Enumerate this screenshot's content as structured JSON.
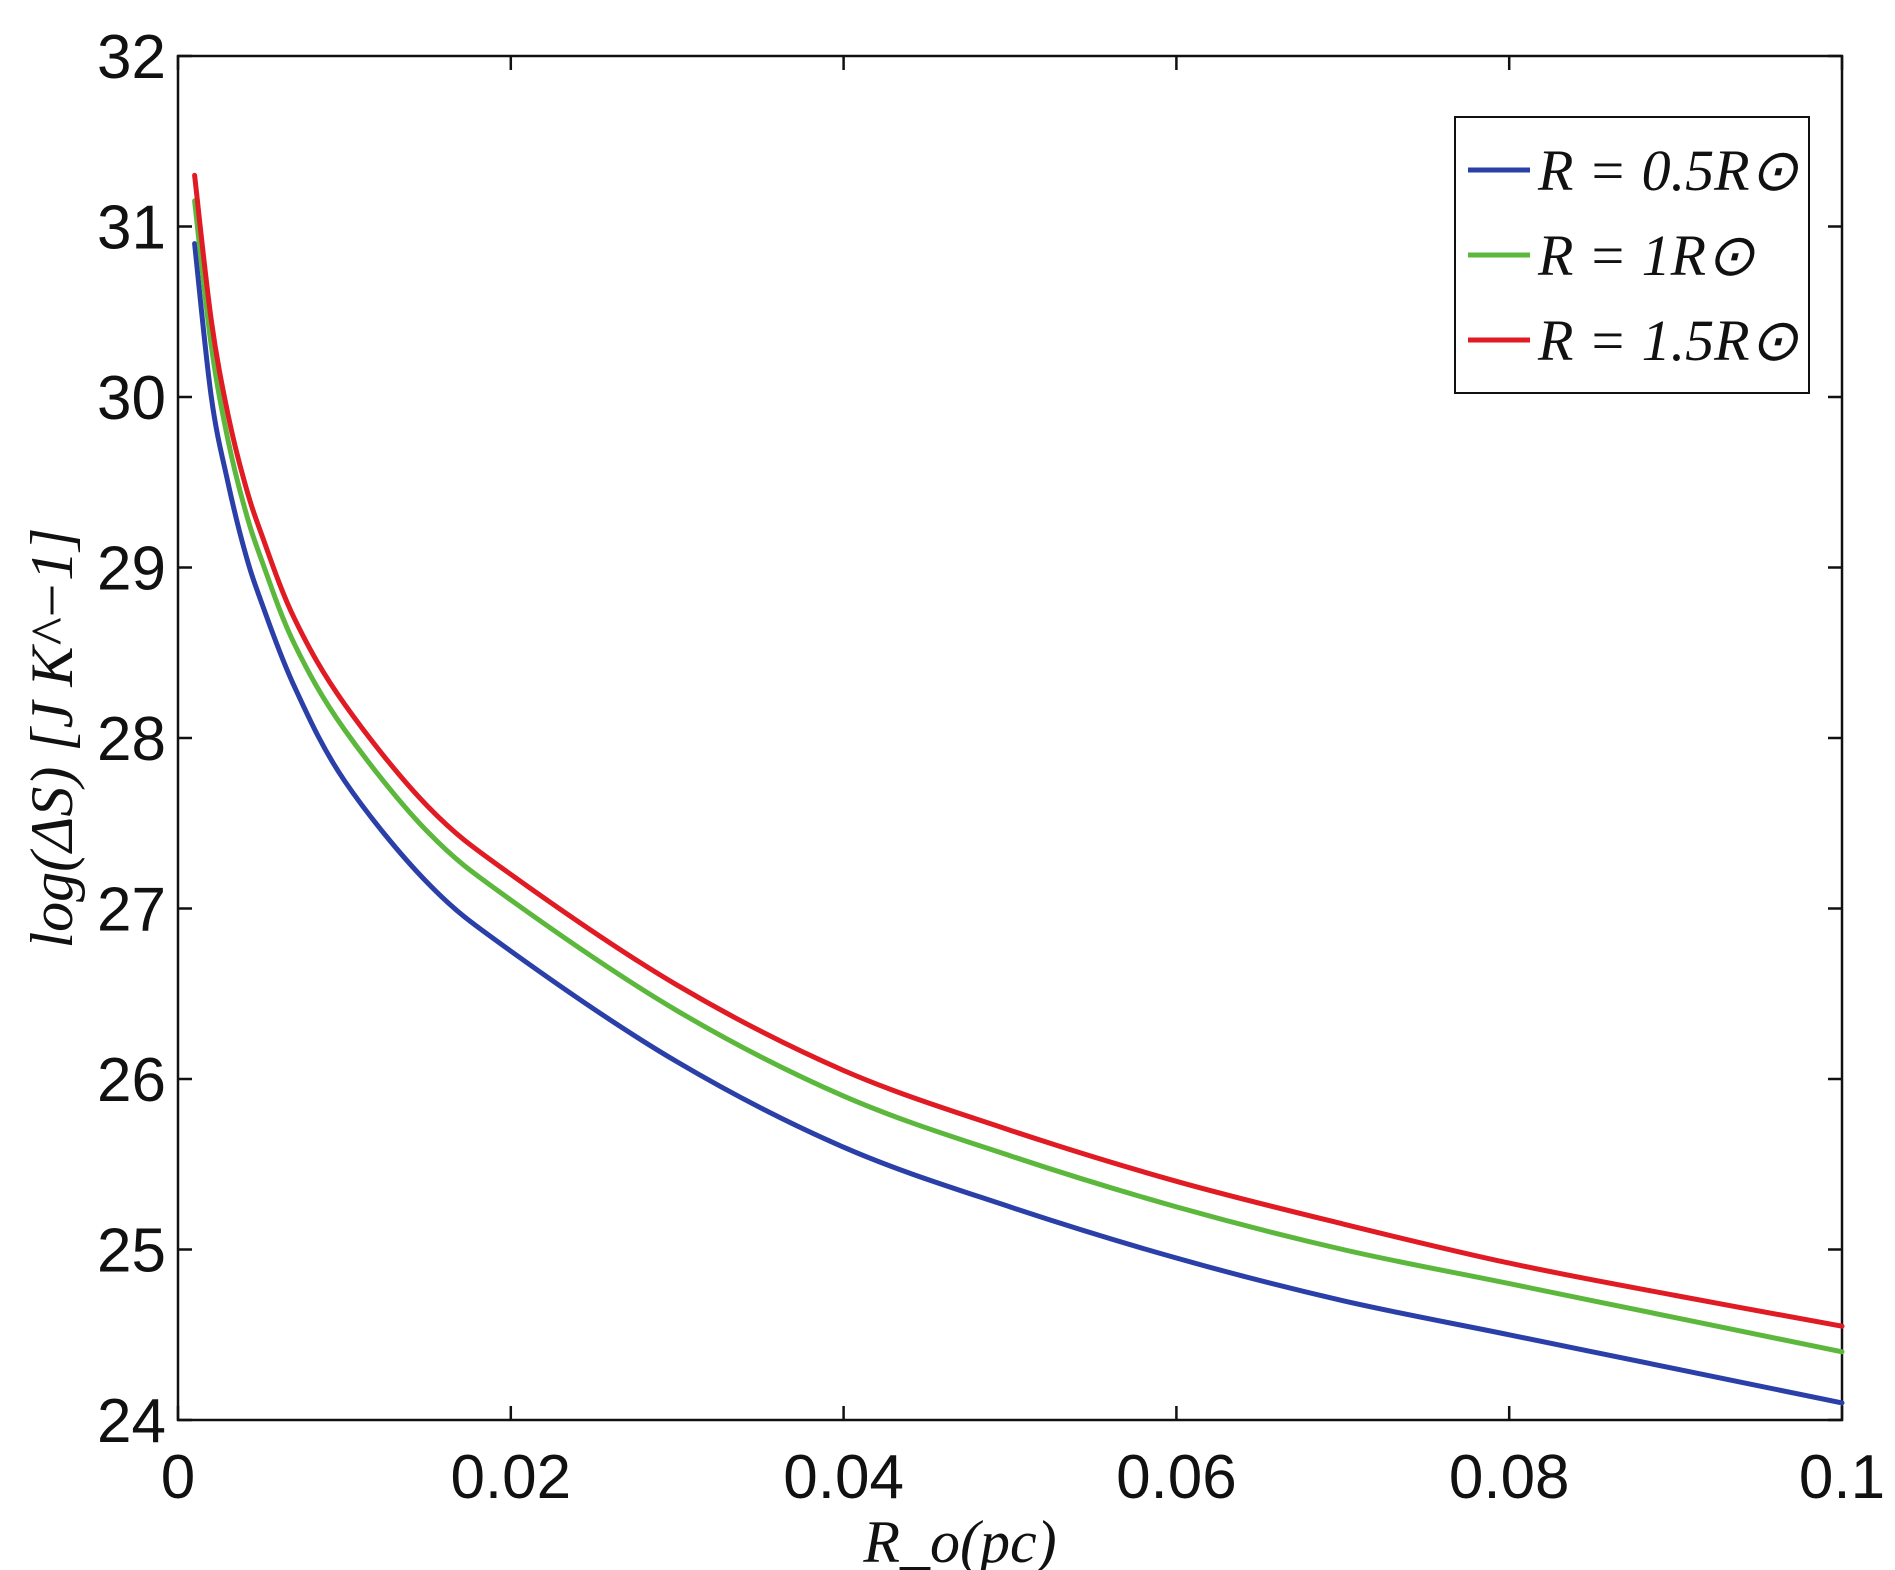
{
  "chart_data": {
    "type": "line",
    "xlabel": "R_o(pc)",
    "ylabel": "log(ΔS)  [J K^−1]",
    "xlim": [
      0,
      0.1
    ],
    "ylim": [
      24,
      32
    ],
    "xticks": [
      {
        "value": 0,
        "label": "0"
      },
      {
        "value": 0.02,
        "label": "0.02"
      },
      {
        "value": 0.04,
        "label": "0.04"
      },
      {
        "value": 0.06,
        "label": "0.06"
      },
      {
        "value": 0.08,
        "label": "0.08"
      },
      {
        "value": 0.1,
        "label": "0.1"
      }
    ],
    "yticks": [
      {
        "value": 24,
        "label": "24"
      },
      {
        "value": 25,
        "label": "25"
      },
      {
        "value": 26,
        "label": "26"
      },
      {
        "value": 27,
        "label": "27"
      },
      {
        "value": 28,
        "label": "28"
      },
      {
        "value": 29,
        "label": "29"
      },
      {
        "value": 30,
        "label": "30"
      },
      {
        "value": 31,
        "label": "31"
      },
      {
        "value": 32,
        "label": "32"
      }
    ],
    "grid": false,
    "legend_position": "top-right",
    "x": [
      0.001,
      0.002,
      0.003,
      0.004,
      0.005,
      0.007,
      0.01,
      0.015,
      0.02,
      0.03,
      0.04,
      0.05,
      0.06,
      0.07,
      0.08,
      0.09,
      0.1
    ],
    "series": [
      {
        "name": "R = 0.5R⊙",
        "color": "#2b3fa8",
        "values": [
          30.9,
          30.0,
          29.5,
          29.1,
          28.8,
          28.3,
          27.75,
          27.15,
          26.75,
          26.1,
          25.6,
          25.25,
          24.95,
          24.7,
          24.5,
          24.3,
          24.1
        ]
      },
      {
        "name": "R = 1R⊙",
        "color": "#5cb83c",
        "values": [
          31.15,
          30.3,
          29.75,
          29.35,
          29.05,
          28.55,
          28.05,
          27.45,
          27.05,
          26.4,
          25.9,
          25.55,
          25.25,
          25.0,
          24.8,
          24.6,
          24.4
        ]
      },
      {
        "name": "R = 1.5R⊙",
        "color": "#e01b24",
        "values": [
          31.3,
          30.45,
          29.9,
          29.5,
          29.2,
          28.7,
          28.2,
          27.6,
          27.2,
          26.55,
          26.05,
          25.7,
          25.4,
          25.15,
          24.92,
          24.73,
          24.55
        ]
      }
    ]
  }
}
